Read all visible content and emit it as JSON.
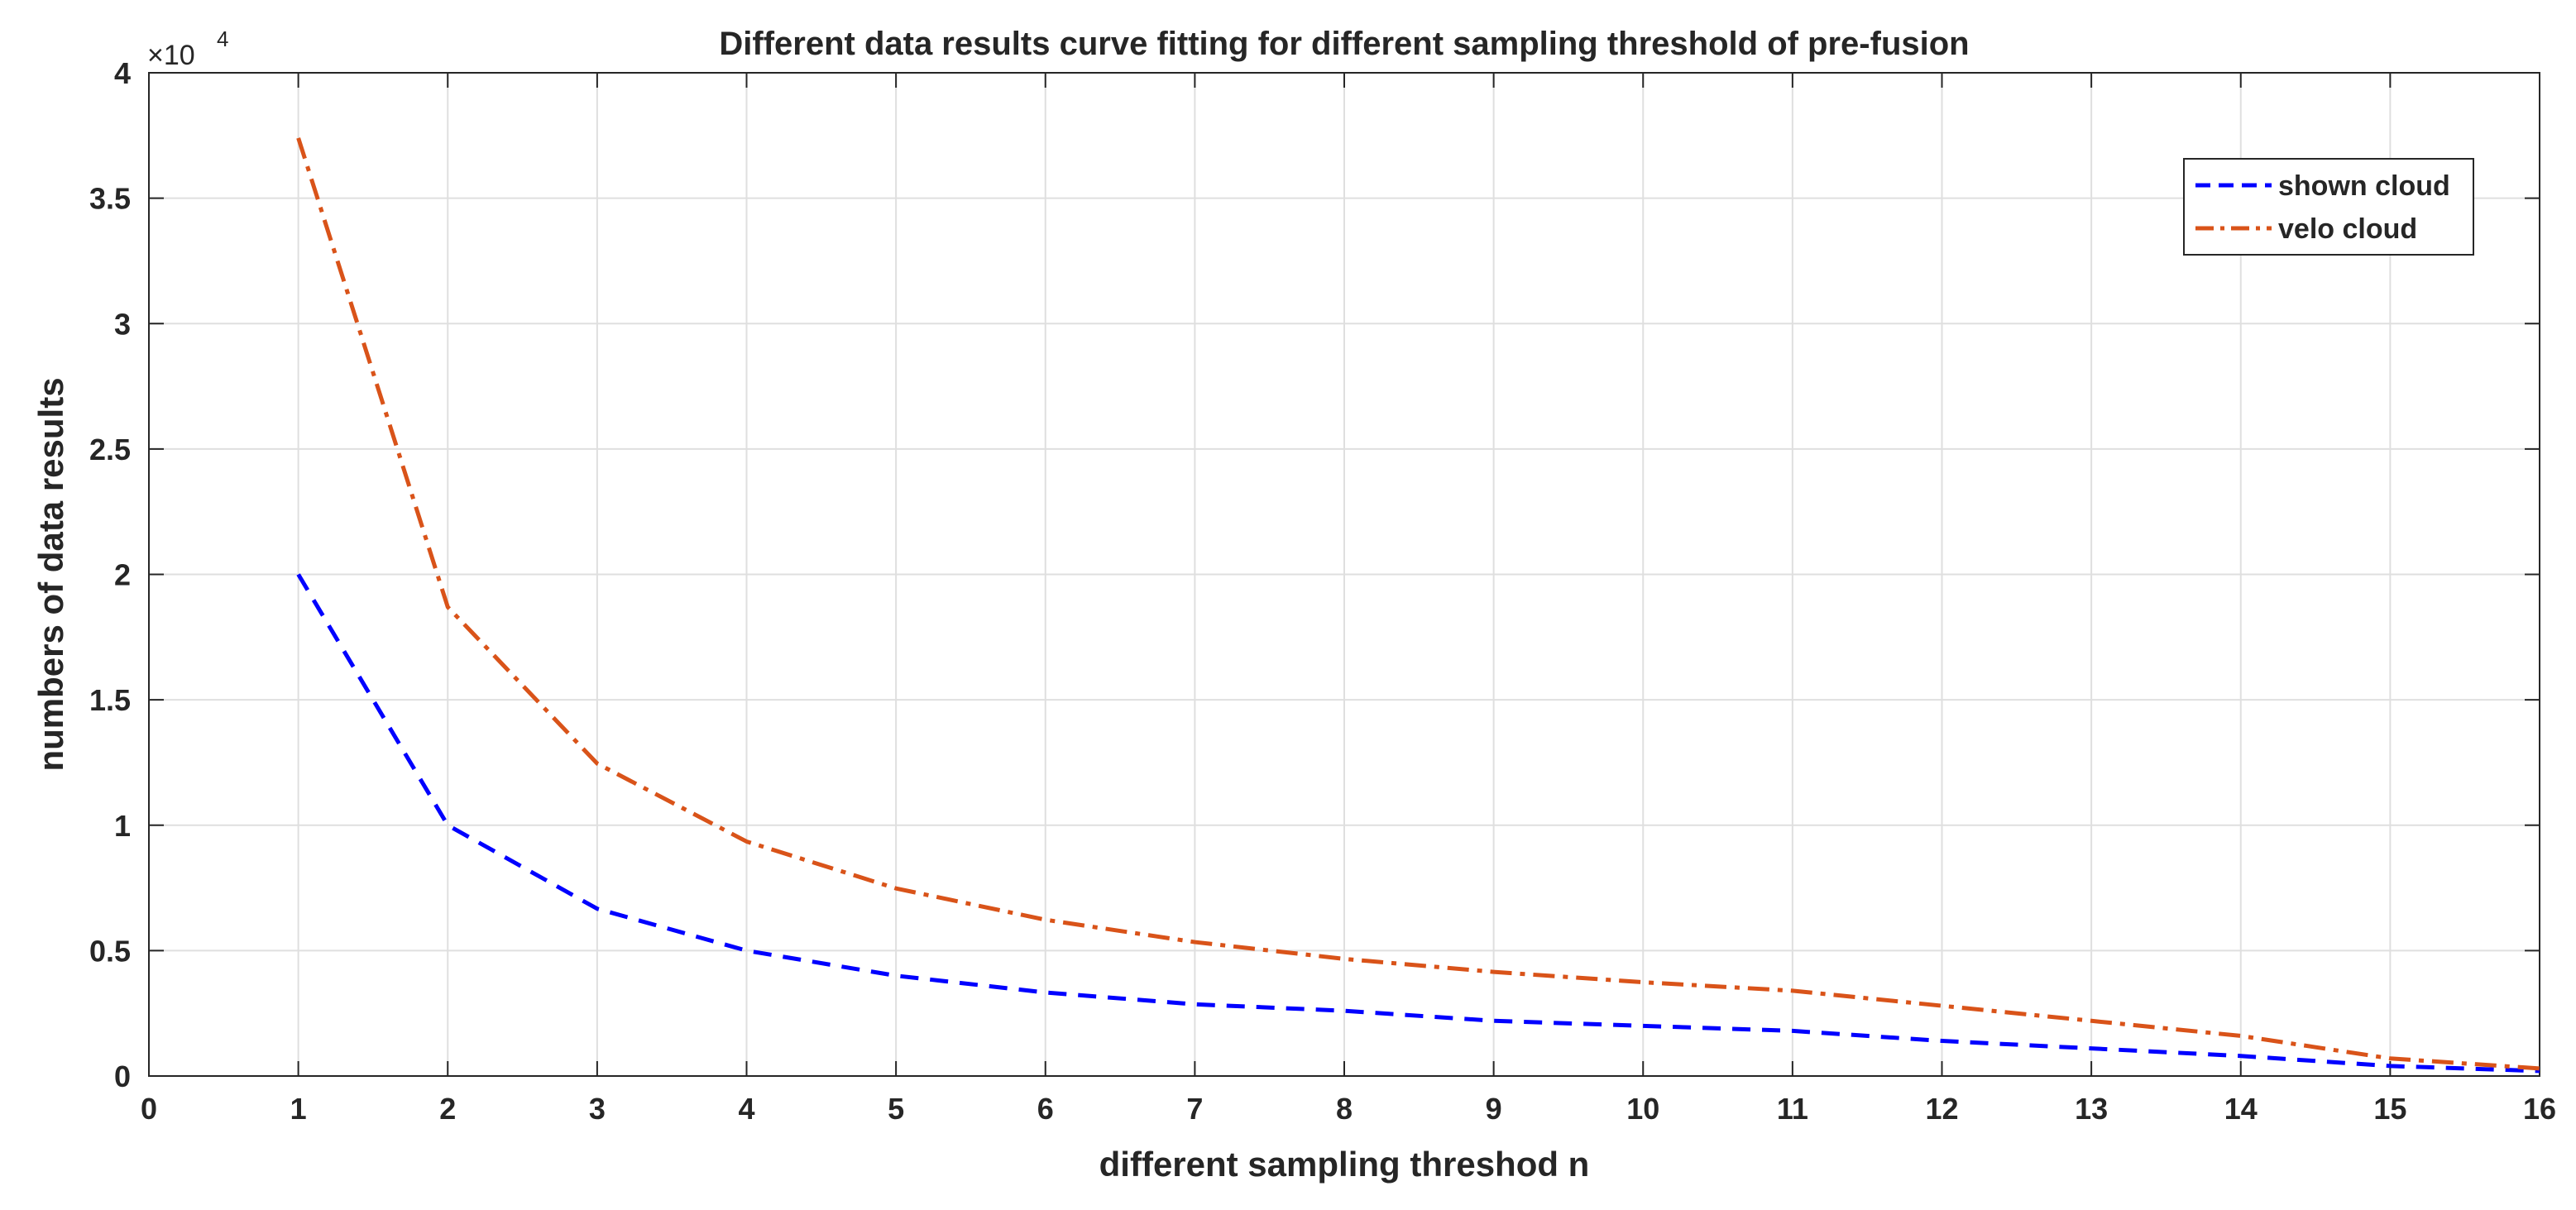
{
  "chart_data": {
    "type": "line",
    "title": "Different data results curve fitting for different sampling threshold of pre-fusion",
    "xlabel": "different sampling threshod n",
    "ylabel": "numbers of data results",
    "xlim": [
      0,
      16
    ],
    "ylim": [
      0,
      4
    ],
    "y_multiplier_label": "×10",
    "y_multiplier_exponent": "4",
    "x_ticks": [
      0,
      1,
      2,
      3,
      4,
      5,
      6,
      7,
      8,
      9,
      10,
      11,
      12,
      13,
      14,
      15,
      16
    ],
    "x_tick_labels": [
      "0",
      "1",
      "2",
      "3",
      "4",
      "5",
      "6",
      "7",
      "8",
      "9",
      "10",
      "11",
      "12",
      "13",
      "14",
      "15",
      "16"
    ],
    "y_ticks": [
      0,
      0.5,
      1,
      1.5,
      2,
      2.5,
      3,
      3.5,
      4
    ],
    "y_tick_labels": [
      "0",
      "0.5",
      "1",
      "1.5",
      "2",
      "2.5",
      "3",
      "3.5",
      "4"
    ],
    "grid": true,
    "legend_position": "top-right",
    "x": [
      1,
      2,
      3,
      4,
      5,
      6,
      7,
      8,
      9,
      10,
      11,
      12,
      13,
      14,
      15,
      16
    ],
    "series": [
      {
        "name": "shown cloud",
        "color": "#0000ff",
        "style": "dashed",
        "values": [
          2.0,
          1.0,
          0.667,
          0.5,
          0.4,
          0.333,
          0.286,
          0.26,
          0.22,
          0.2,
          0.18,
          0.14,
          0.11,
          0.08,
          0.04,
          0.02
        ]
      },
      {
        "name": "velo cloud",
        "color": "#d95319",
        "style": "dashdot",
        "values": [
          3.74,
          1.87,
          1.246,
          0.935,
          0.748,
          0.623,
          0.534,
          0.467,
          0.415,
          0.374,
          0.34,
          0.28,
          0.22,
          0.16,
          0.07,
          0.03
        ]
      }
    ]
  }
}
